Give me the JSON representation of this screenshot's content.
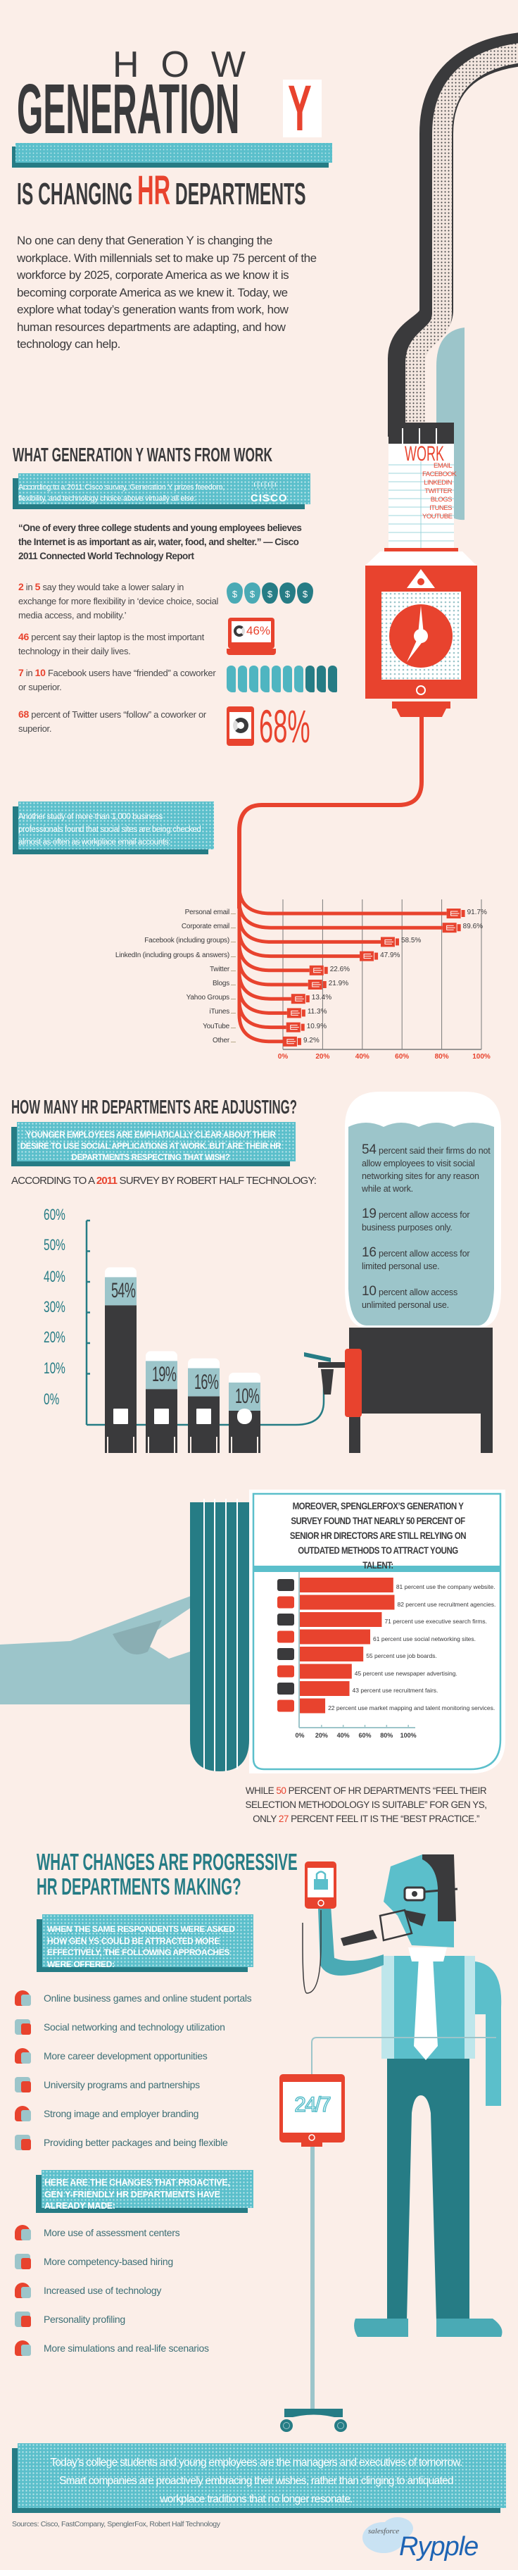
{
  "title": {
    "how": "HOW",
    "generation": "GENERATION",
    "y": "Y",
    "sub_pre": "IS CHANGING",
    "sub_hr": "HR",
    "sub_post": "DEPARTMENTS"
  },
  "intro": "No one can deny that Generation Y is changing the workplace. With millennials set to make up 75 percent of the workforce by 2025, corporate America as we know it is becoming corporate America as we knew it. Today, we explore what today’s generation wants from work, how human resources departments are adapting, and how technology can help.",
  "colors": {
    "background": "#fbeee8",
    "dark": "#3a3a3c",
    "red": "#e8432e",
    "teal": "#267c85",
    "light_teal": "#5bbfcb",
    "light_blue": "#9cc5ca"
  },
  "section1": {
    "heading": "WHAT GENERATION Y WANTS FROM WORK",
    "cisco_box": "According to a 2011 Cisco survey, Generation Y prizes freedom, flexibility, and technology choice above virtually all else:",
    "cisco_logo": "CISCO",
    "quote": "“One of every three college students and young employees believes the Internet is as important as air, water, food, and shelter.” — Cisco 2011 Connected World Technology Report",
    "stats": [
      {
        "a": "2",
        "mid": " in ",
        "b": "5",
        "text": " say they would take a lower salary in exchange for more flexibility in ‘device choice, social media access, and mobility.’",
        "icon": "money-bag-icon"
      },
      {
        "a": "46",
        "mid": "",
        "b": "",
        "text": " percent say their laptop is the most important technology in their daily lives.",
        "icon": "laptop-icon"
      },
      {
        "a": "7",
        "mid": " in ",
        "b": "10",
        "text": " Facebook users have “friended” a coworker or superior.",
        "icon": "hand-icon"
      },
      {
        "a": "68",
        "mid": "",
        "b": "",
        "text": " percent of Twitter users “follow” a coworker or superior.",
        "icon": "tablet-icon"
      }
    ],
    "laptop_label": "46%",
    "tablet_label": "68%",
    "work_tower": {
      "title": "WORK",
      "items": [
        "EMAIL",
        "FACEBOOK",
        "LINKEDIN",
        "TWITTER",
        "BLOGS",
        "ITUNES",
        "YOUTUBE"
      ]
    },
    "study_box": "Another study of more than 1,000 business professionals found that social sites are being checked almost as often as workplace email accounts:"
  },
  "section2": {
    "heading": "HOW MANY HR DEPARTMENTS ARE ADJUSTING?",
    "box": "YOUNGER EMPLOYEES ARE EMPHATICALLY CLEAR ABOUT THEIR DESIRE TO USE SOCIAL APPLICATIONS AT WORK. BUT ARE THEIR HR DEPARTMENTS RESPECTING THAT WISH?",
    "according_pre": "ACCORDING TO A ",
    "according_year": "2011",
    "according_post": " SURVEY BY ROBERT HALF TECHNOLOGY:",
    "bubble": [
      {
        "num": "54",
        "text": " percent said their firms do not allow employees to visit social networking sites for any reason while at work."
      },
      {
        "num": "19",
        "text": " percent allow access for business purposes only."
      },
      {
        "num": "16",
        "text": " percent allow access for limited personal use."
      },
      {
        "num": "10",
        "text": " percent allow access unlimited personal use."
      }
    ],
    "bar_icons": [
      "lock-icon",
      "documents-icon",
      "hourglass-icon",
      "infinity-icon"
    ],
    "spengler_title": "MOREOVER, SPENGLERFOX’S GENERATION Y SURVEY FOUND THAT NEARLY 50 PERCENT OF SENIOR HR DIRECTORS ARE STILL RELYING ON OUTDATED METHODS TO ATTRACT YOUNG TALENT:",
    "while_pre": "WHILE ",
    "while_a": "50",
    "while_mid": " PERCENT OF HR DEPARTMENTS “FEEL THEIR SELECTION METHODOLOGY IS SUITABLE” FOR GEN YS, ONLY ",
    "while_b": "27",
    "while_post": " PERCENT FEEL IT IS THE “BEST PRACTICE.”"
  },
  "section3": {
    "heading_1": "WHAT CHANGES ARE PROGRESSIVE",
    "heading_2": "HR DEPARTMENTS MAKING?",
    "box1": "WHEN THE SAME RESPONDENTS WERE ASKED HOW GEN YS COULD BE ATTRACTED MORE EFFECTIVELY, THE FOLLOWING APPROACHES WERE OFFERED:",
    "approaches": [
      {
        "text": "Online business games and online student portals",
        "icon": "briefcase-magnet-icon"
      },
      {
        "text": "Social networking and technology utilization",
        "icon": "ladder-icon"
      },
      {
        "text": "More career development opportunities",
        "icon": "watering-can-icon"
      },
      {
        "text": "University programs and partnerships",
        "icon": "diploma-icon"
      },
      {
        "text": "Strong image and employer branding",
        "icon": "anvil-icon"
      },
      {
        "text": "Providing better packages and being flexible",
        "icon": "gift-box-icon"
      }
    ],
    "box2": "HERE ARE THE CHANGES THAT PROACTIVE, GEN Y-FRIENDLY HR DEPARTMENTS HAVE ALREADY MADE:",
    "changes": [
      {
        "text": "More use of assessment centers",
        "icon": "abc-grid-icon"
      },
      {
        "text": "More competency-based hiring",
        "icon": "head-lightbulb-icon"
      },
      {
        "text": "Increased use of technology",
        "icon": "mouse-icon"
      },
      {
        "text": "Personality profiling",
        "icon": "two-heads-icon"
      },
      {
        "text": "More simulations and real-life scenarios",
        "icon": "cube-figure-icon"
      }
    ],
    "tablet_text": "24/7"
  },
  "footer": {
    "closing": "Today’s college students and young employees are the managers and executives of tomorrow. Smart companies are proactively embracing their wishes, rather than clinging to antiquated workplace traditions that no longer resonate.",
    "sources": "Sources: Cisco, FastCompany, SpenglerFox, Robert Half Technology",
    "logo_small": "salesforce",
    "logo_big": "Rypple"
  },
  "chart_data": [
    {
      "type": "bar",
      "orientation": "horizontal",
      "categories": [
        "Personal email",
        "Corporate email",
        "Facebook (including groups)",
        "LinkedIn (including groups & answers)",
        "Twitter",
        "Blogs",
        "Yahoo Groups",
        "iTunes",
        "YouTube",
        "Other"
      ],
      "values": [
        91.7,
        89.6,
        58.5,
        47.9,
        22.6,
        21.9,
        13.4,
        11.3,
        10.9,
        9.2
      ],
      "value_labels": [
        "91.7%",
        "89.6%",
        "58.5%",
        "47.9%",
        "22.6%",
        "21.9%",
        "13.4%",
        "11.3%",
        "10.9%",
        "9.2%"
      ],
      "xlim": [
        0,
        100
      ],
      "xticks": [
        "0%",
        "20%",
        "40%",
        "60%",
        "80%",
        "100%"
      ],
      "grid": true
    },
    {
      "type": "bar",
      "values": [
        54,
        19,
        16,
        10
      ],
      "value_labels": [
        "54%",
        "19%",
        "16%",
        "10%"
      ],
      "ylim": [
        0,
        60
      ],
      "yticks": [
        "60%",
        "50%",
        "40%",
        "30%",
        "20%",
        "10%",
        "0%"
      ]
    },
    {
      "type": "bar",
      "orientation": "horizontal",
      "values": [
        81,
        82,
        71,
        61,
        55,
        45,
        43,
        22
      ],
      "labels": [
        "81 percent use the company website.",
        "82 percent use recruitment agencies.",
        "71 percent use executive search firms.",
        "61 percent use social networking sites.",
        "55 percent use job boards.",
        "45 percent use newspaper advertising.",
        "43 percent use recruitment fairs.",
        "22 percent use market mapping and talent monitoring services."
      ],
      "icons": [
        "monitor-globe-icon",
        "eye-megaphone-icon",
        "magnifier-head-icon",
        "handshake-monitor-icon",
        "pushpin-icon",
        "newspaper-icon",
        "flag-icon",
        "person-icon"
      ],
      "xlim": [
        0,
        100
      ],
      "xticks": [
        "0%",
        "20%",
        "40%",
        "60%",
        "80%",
        "100%"
      ]
    }
  ]
}
